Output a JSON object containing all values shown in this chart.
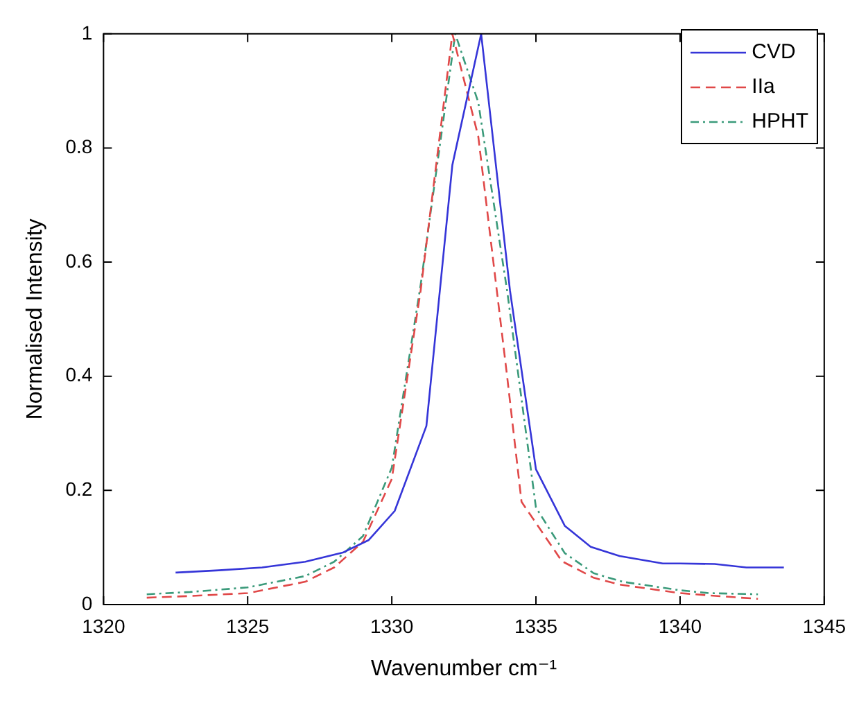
{
  "chart_data": {
    "type": "line",
    "xlabel": "Wavenumber cm⁻¹",
    "ylabel": "Normalised Intensity",
    "xlim": [
      1320,
      1345
    ],
    "xticks": [
      1320,
      1325,
      1330,
      1335,
      1340,
      1345
    ],
    "ylim": [
      0,
      1
    ],
    "yticks": [
      0,
      0.2,
      0.4,
      0.6,
      0.8,
      1
    ],
    "grid": false,
    "legend": "top right",
    "marker": "none",
    "series": [
      {
        "name": "CVD",
        "color": "#3535d8",
        "line_style": "solid",
        "x": [
          1322.5,
          1324,
          1325.5,
          1327,
          1328.3,
          1329.2,
          1330.1,
          1331.2,
          1332.1,
          1333.1,
          1334.1,
          1335,
          1336,
          1336.9,
          1337.9,
          1339.4,
          1340,
          1341.2,
          1342.3,
          1343.6
        ],
        "values": [
          0.056,
          0.06,
          0.065,
          0.075,
          0.091,
          0.113,
          0.164,
          0.313,
          0.77,
          1,
          0.55,
          0.237,
          0.138,
          0.101,
          0.085,
          0.072,
          0.072,
          0.071,
          0.065,
          0.065
        ]
      },
      {
        "name": "IIa",
        "color": "#e04848",
        "line_style": "dashed",
        "x": [
          1321.5,
          1323,
          1325,
          1327,
          1328,
          1329,
          1330,
          1331,
          1332.1,
          1333,
          1334,
          1334.5,
          1335.9,
          1337,
          1337.9,
          1340,
          1341,
          1342.7
        ],
        "values": [
          0.012,
          0.015,
          0.02,
          0.04,
          0.065,
          0.11,
          0.22,
          0.55,
          1,
          0.82,
          0.4,
          0.18,
          0.076,
          0.047,
          0.035,
          0.02,
          0.016,
          0.01
        ]
      },
      {
        "name": "HPHT",
        "color": "#3a9a7a",
        "line_style": "dotted",
        "x": [
          1321.5,
          1323,
          1325,
          1327,
          1328,
          1329,
          1330,
          1331,
          1332.2,
          1333,
          1334,
          1335,
          1336,
          1337,
          1338,
          1340,
          1341,
          1342.7
        ],
        "values": [
          0.018,
          0.022,
          0.03,
          0.05,
          0.075,
          0.12,
          0.24,
          0.56,
          1,
          0.88,
          0.55,
          0.17,
          0.09,
          0.055,
          0.04,
          0.025,
          0.02,
          0.018
        ]
      }
    ]
  }
}
